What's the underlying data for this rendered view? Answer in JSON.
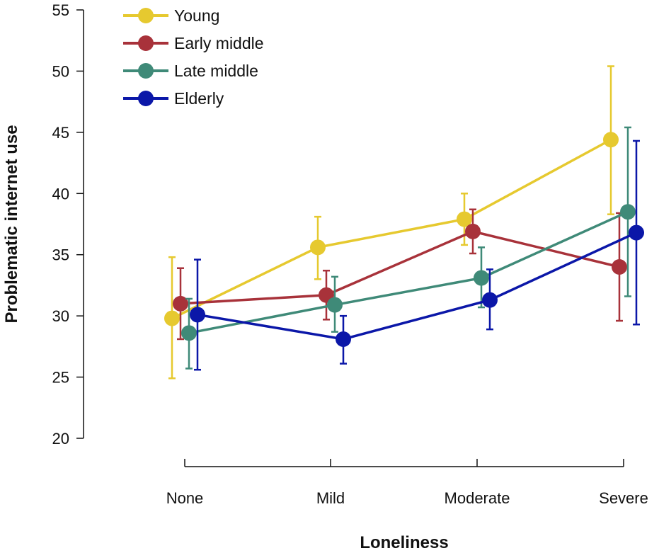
{
  "chart_data": {
    "type": "line",
    "title": "",
    "xlabel": "Loneliness",
    "ylabel": "Problematic internet use",
    "categories": [
      "None",
      "Mild",
      "Moderate",
      "Severe"
    ],
    "ylim": [
      20,
      55
    ],
    "yticks": [
      20,
      25,
      30,
      35,
      40,
      45,
      50,
      55
    ],
    "legend_position": "top-left",
    "grid": false,
    "error_bars": true,
    "series": [
      {
        "name": "Young",
        "color": "#e6c92f",
        "values": [
          29.8,
          35.6,
          37.9,
          44.4
        ],
        "err_low": [
          24.9,
          33.0,
          35.8,
          38.3
        ],
        "err_high": [
          34.8,
          38.1,
          40.0,
          50.4
        ]
      },
      {
        "name": "Early middle",
        "color": "#a8323a",
        "values": [
          31.0,
          31.7,
          36.9,
          34.0
        ],
        "err_low": [
          28.1,
          29.7,
          35.1,
          29.6
        ],
        "err_high": [
          33.9,
          33.7,
          38.7,
          38.4
        ]
      },
      {
        "name": "Late middle",
        "color": "#3f8a78",
        "values": [
          28.6,
          30.9,
          33.1,
          38.5
        ],
        "err_low": [
          25.7,
          28.7,
          30.7,
          31.6
        ],
        "err_high": [
          31.4,
          33.2,
          35.6,
          45.4
        ]
      },
      {
        "name": "Elderly",
        "color": "#0b17a8",
        "values": [
          30.1,
          28.1,
          31.3,
          36.8
        ],
        "err_low": [
          25.6,
          26.1,
          28.9,
          29.3
        ],
        "err_high": [
          34.6,
          30.0,
          33.8,
          44.3
        ]
      }
    ]
  }
}
